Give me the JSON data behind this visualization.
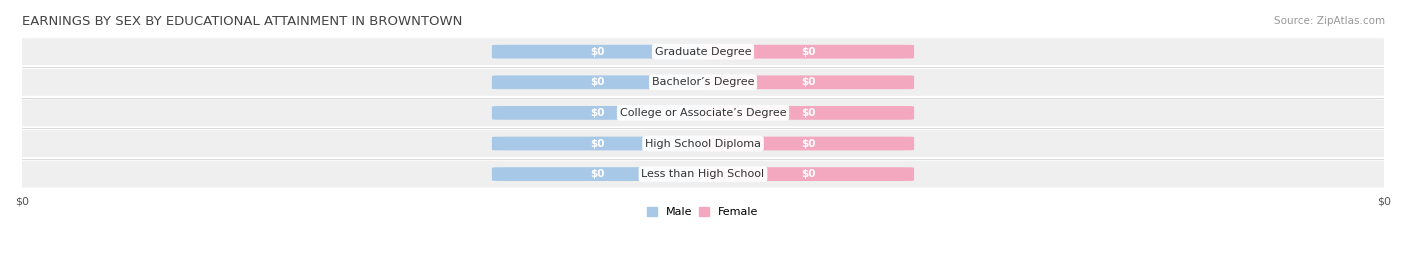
{
  "title": "EARNINGS BY SEX BY EDUCATIONAL ATTAINMENT IN BROWNTOWN",
  "source": "Source: ZipAtlas.com",
  "categories": [
    "Less than High School",
    "High School Diploma",
    "College or Associate’s Degree",
    "Bachelor’s Degree",
    "Graduate Degree"
  ],
  "male_values": [
    0,
    0,
    0,
    0,
    0
  ],
  "female_values": [
    0,
    0,
    0,
    0,
    0
  ],
  "male_color": "#a8c8e8",
  "female_color": "#f4a8c0",
  "row_bg_color": "#efefef",
  "row_bg_color2": "#ffffff",
  "label_color": "#333333",
  "title_color": "#444444",
  "axis_label": "$0",
  "value_label": "$0",
  "figsize": [
    14.06,
    2.69
  ],
  "dpi": 100,
  "title_fontsize": 9.5,
  "source_fontsize": 7.5,
  "bar_label_fontsize": 7.5,
  "category_fontsize": 8,
  "legend_fontsize": 8,
  "tick_fontsize": 8
}
